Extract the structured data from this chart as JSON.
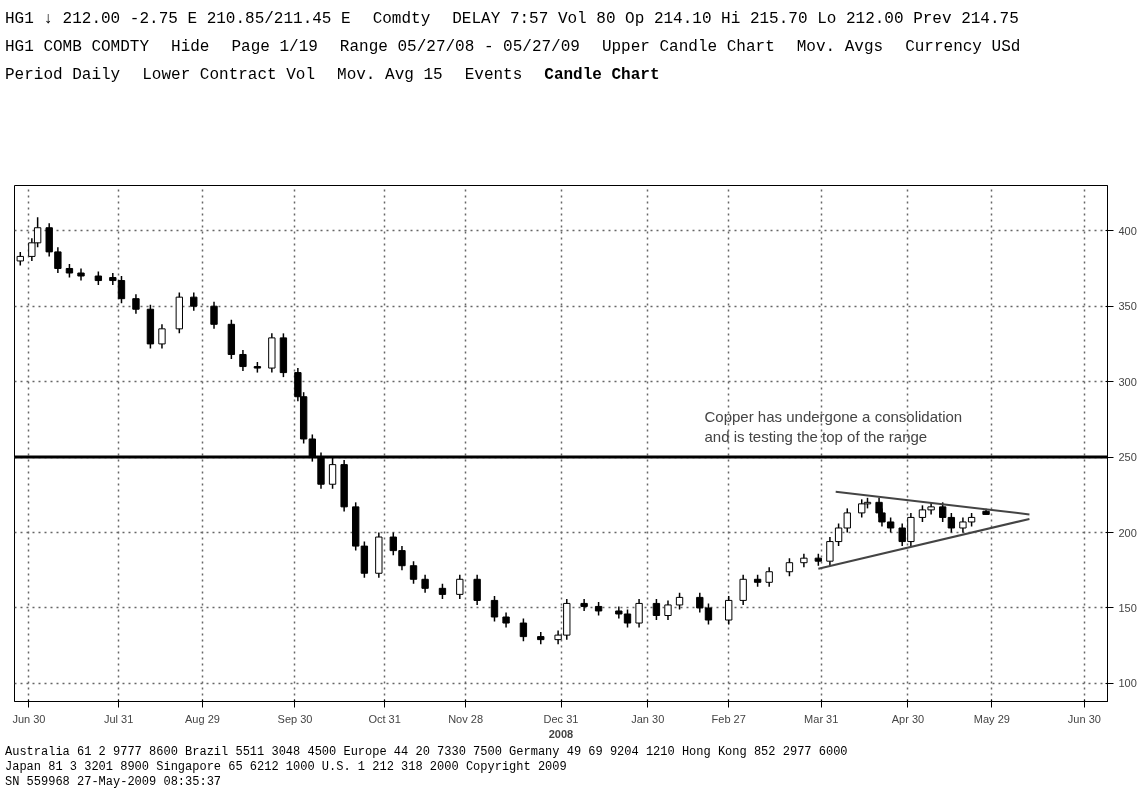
{
  "chart_data": {
    "type": "candlestick",
    "title": "Candle Chart",
    "xlabel": "2008",
    "xlim": [
      "2008-06-25",
      "2009-07-08"
    ],
    "ylim": [
      88,
      430
    ],
    "xticks": [
      {
        "value": "2008-06-30",
        "label": "Jun 30"
      },
      {
        "value": "2008-07-31",
        "label": "Jul 31"
      },
      {
        "value": "2008-08-29",
        "label": "Aug 29"
      },
      {
        "value": "2008-09-30",
        "label": "Sep 30"
      },
      {
        "value": "2008-10-31",
        "label": "Oct 31"
      },
      {
        "value": "2008-11-28",
        "label": "Nov 28"
      },
      {
        "value": "2008-12-31",
        "label": "Dec 31"
      },
      {
        "value": "2009-01-30",
        "label": "Jan 30"
      },
      {
        "value": "2009-02-27",
        "label": "Feb 27"
      },
      {
        "value": "2009-03-31",
        "label": "Mar 31"
      },
      {
        "value": "2009-04-30",
        "label": "Apr 30"
      },
      {
        "value": "2009-05-29",
        "label": "May 29"
      },
      {
        "value": "2009-06-30",
        "label": "Jun 30"
      }
    ],
    "yticks": [
      100,
      150,
      200,
      250,
      300,
      350,
      400
    ],
    "grid": true,
    "ref_lines": [
      {
        "axis": "y",
        "value": 250,
        "color": "#000000",
        "label": "Copper has undergone a consolidation\nand is testing the top of the range"
      }
    ],
    "series": [
      {
        "type": "candlestick",
        "color": "#000000",
        "x": [
          "2008-06-27",
          "2008-07-01",
          "2008-07-03",
          "2008-07-07",
          "2008-07-10",
          "2008-07-14",
          "2008-07-18",
          "2008-07-24",
          "2008-07-29",
          "2008-08-01",
          "2008-08-06",
          "2008-08-11",
          "2008-08-15",
          "2008-08-21",
          "2008-08-26",
          "2008-09-02",
          "2008-09-08",
          "2008-09-12",
          "2008-09-17",
          "2008-09-22",
          "2008-09-26",
          "2008-10-01",
          "2008-10-03",
          "2008-10-06",
          "2008-10-09",
          "2008-10-13",
          "2008-10-17",
          "2008-10-21",
          "2008-10-24",
          "2008-10-29",
          "2008-11-03",
          "2008-11-06",
          "2008-11-10",
          "2008-11-14",
          "2008-11-20",
          "2008-11-26",
          "2008-12-02",
          "2008-12-08",
          "2008-12-12",
          "2008-12-18",
          "2008-12-24",
          "2008-12-30",
          "2009-01-02",
          "2009-01-08",
          "2009-01-13",
          "2009-01-20",
          "2009-01-23",
          "2009-01-27",
          "2009-02-02",
          "2009-02-06",
          "2009-02-10",
          "2009-02-17",
          "2009-02-20",
          "2009-02-27",
          "2009-03-04",
          "2009-03-09",
          "2009-03-13",
          "2009-03-20",
          "2009-03-25",
          "2009-03-30",
          "2009-04-03",
          "2009-04-06",
          "2009-04-09",
          "2009-04-14",
          "2009-04-16",
          "2009-04-20",
          "2009-04-21",
          "2009-04-24",
          "2009-04-28",
          "2009-05-01",
          "2009-05-05",
          "2009-05-08",
          "2009-05-12",
          "2009-05-15",
          "2009-05-19",
          "2009-05-22",
          "2009-05-27"
        ],
        "ohlc": [
          [
            380,
            386,
            377,
            383
          ],
          [
            383,
            395,
            380,
            392
          ],
          [
            392,
            409,
            389,
            402
          ],
          [
            402,
            405,
            383,
            386
          ],
          [
            386,
            389,
            372,
            375
          ],
          [
            375,
            378,
            369,
            372
          ],
          [
            372,
            375,
            367,
            370
          ],
          [
            370,
            373,
            364,
            367
          ],
          [
            369,
            372,
            364,
            367
          ],
          [
            367,
            370,
            352,
            355
          ],
          [
            355,
            358,
            345,
            348
          ],
          [
            348,
            351,
            322,
            325
          ],
          [
            325,
            338,
            322,
            335
          ],
          [
            335,
            359,
            332,
            356
          ],
          [
            356,
            359,
            347,
            350
          ],
          [
            350,
            353,
            335,
            338
          ],
          [
            338,
            341,
            315,
            318
          ],
          [
            318,
            321,
            307,
            310
          ],
          [
            310,
            313,
            306,
            309
          ],
          [
            309,
            332,
            306,
            329
          ],
          [
            329,
            332,
            303,
            306
          ],
          [
            306,
            309,
            287,
            290
          ],
          [
            290,
            293,
            259,
            262
          ],
          [
            262,
            265,
            247,
            250
          ],
          [
            250,
            253,
            229,
            232
          ],
          [
            232,
            250,
            229,
            245
          ],
          [
            245,
            248,
            214,
            217
          ],
          [
            217,
            220,
            188,
            191
          ],
          [
            191,
            194,
            170,
            173
          ],
          [
            173,
            200,
            170,
            197
          ],
          [
            197,
            200,
            185,
            188
          ],
          [
            188,
            191,
            175,
            178
          ],
          [
            178,
            181,
            166,
            169
          ],
          [
            169,
            172,
            160,
            163
          ],
          [
            163,
            166,
            156,
            159
          ],
          [
            159,
            172,
            156,
            169
          ],
          [
            169,
            172,
            152,
            155
          ],
          [
            155,
            158,
            141,
            144
          ],
          [
            144,
            147,
            137,
            140
          ],
          [
            140,
            143,
            128,
            131
          ],
          [
            131,
            134,
            126,
            129
          ],
          [
            129,
            135,
            126,
            132
          ],
          [
            132,
            156,
            129,
            153
          ],
          [
            153,
            156,
            148,
            151
          ],
          [
            151,
            154,
            145,
            148
          ],
          [
            148,
            151,
            143,
            146
          ],
          [
            146,
            149,
            137,
            140
          ],
          [
            140,
            156,
            137,
            153
          ],
          [
            153,
            156,
            142,
            145
          ],
          [
            145,
            155,
            142,
            152
          ],
          [
            152,
            160,
            149,
            157
          ],
          [
            157,
            160,
            147,
            150
          ],
          [
            150,
            153,
            139,
            142
          ],
          [
            142,
            158,
            139,
            155
          ],
          [
            155,
            172,
            152,
            169
          ],
          [
            169,
            172,
            164,
            167
          ],
          [
            167,
            177,
            164,
            174
          ],
          [
            174,
            183,
            171,
            180
          ],
          [
            180,
            186,
            177,
            183
          ],
          [
            183,
            186,
            178,
            181
          ],
          [
            181,
            197,
            178,
            194
          ],
          [
            194,
            206,
            191,
            203
          ],
          [
            203,
            216,
            200,
            213
          ],
          [
            213,
            222,
            210,
            219
          ],
          [
            219,
            223,
            216,
            220
          ],
          [
            220,
            223,
            210,
            213
          ],
          [
            213,
            216,
            204,
            207
          ],
          [
            207,
            210,
            200,
            203
          ],
          [
            203,
            206,
            191,
            194
          ],
          [
            194,
            213,
            191,
            210
          ],
          [
            210,
            218,
            207,
            215
          ],
          [
            215,
            220,
            212,
            217
          ],
          [
            217,
            220,
            207,
            210
          ],
          [
            210,
            213,
            200,
            203
          ],
          [
            203,
            210,
            200,
            207
          ],
          [
            207,
            213,
            204,
            210
          ],
          [
            214.1,
            215.7,
            212,
            212
          ]
        ]
      },
      {
        "type": "line",
        "color": "#444444",
        "x": [
          "2009-04-05",
          "2009-06-11"
        ],
        "values": [
          227,
          212
        ]
      },
      {
        "type": "line",
        "color": "#444444",
        "x": [
          "2009-03-30",
          "2009-06-11"
        ],
        "values": [
          176,
          209
        ]
      }
    ],
    "annotations": [
      "HG1 ↓ 212.00 -2.75 E 210.85/211.45 E",
      "Comdty",
      "DELAY 7:57 Vol 80 Op 214.10 Hi 215.70 Lo 212.00 Prev 214.75",
      "HG1 COMB COMDTY",
      "Hide",
      "Page 1/19",
      "Range 05/27/08 - 05/27/09",
      "Upper Candle Chart",
      "Mov. Avgs",
      "Currency USd",
      "Period Daily",
      "Lower Contract Vol",
      "Mov. Avg 15",
      "Events",
      "Australia 61 2 9777 8600 Brazil 5511 3048 4500 Europe 44 20 7330 7500 Germany 49 69 9204 1210 Hong Kong 852 2977 6000",
      "Japan 81 3 3201 8900 Singapore 65 6212 1000 U.S. 1 212 318 2000 Copyright 2009",
      "SN 559968 27-May-2009 08:35:37"
    ]
  }
}
